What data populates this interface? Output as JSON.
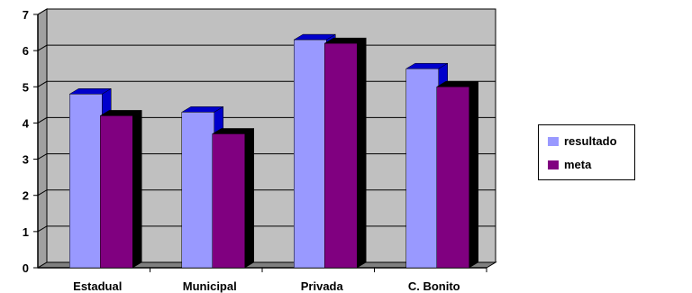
{
  "chart_data": {
    "type": "bar",
    "categories": [
      "Estadual",
      "Municipal",
      "Privada",
      "C. Bonito"
    ],
    "series": [
      {
        "name": "resultado",
        "values": [
          4.8,
          4.3,
          6.3,
          5.5
        ],
        "color": "#9999FF"
      },
      {
        "name": "meta",
        "values": [
          4.2,
          3.7,
          6.2,
          5.0
        ],
        "color": "#800080"
      }
    ],
    "yticks": [
      0,
      1,
      2,
      3,
      4,
      5,
      6,
      7
    ],
    "ylim": [
      0,
      7
    ],
    "grid": true,
    "legend_position": "right",
    "title": "",
    "xlabel": "",
    "ylabel": "",
    "colors": {
      "wall": "#C0C0C0",
      "floor": "#808080",
      "resultado_side": "#0000CC",
      "meta_side": "#000000"
    }
  }
}
